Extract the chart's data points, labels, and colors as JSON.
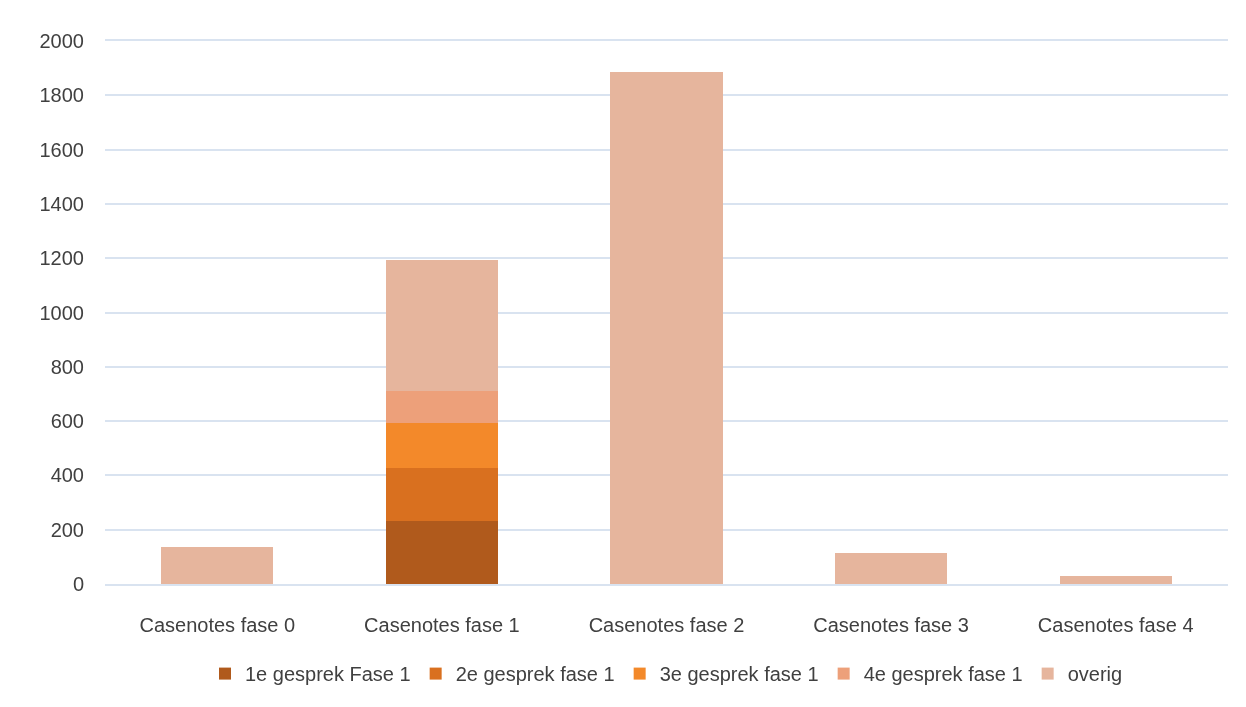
{
  "chart_data": {
    "type": "bar",
    "stacked": true,
    "categories": [
      "Casenotes fase 0",
      "Casenotes fase 1",
      "Casenotes fase 2",
      "Casenotes fase 3",
      "Casenotes fase 4"
    ],
    "series": [
      {
        "name": "1e gesprek Fase 1",
        "color": "#b05a1c",
        "values": [
          null,
          233,
          null,
          null,
          null
        ]
      },
      {
        "name": "2e gesprek fase 1",
        "color": "#d9701f",
        "values": [
          null,
          195,
          null,
          null,
          null
        ]
      },
      {
        "name": "3e gesprek fase 1",
        "color": "#f3892a",
        "values": [
          null,
          166,
          null,
          null,
          null
        ]
      },
      {
        "name": "4e gesprek fase 1",
        "color": "#eda07a",
        "values": [
          null,
          118,
          null,
          null,
          null
        ]
      },
      {
        "name": "overig",
        "color": "#e6b59d",
        "values": [
          136,
          482,
          1885,
          114,
          31
        ]
      }
    ],
    "ylim": [
      0,
      2000
    ],
    "yticks": [
      0,
      200,
      400,
      600,
      800,
      1000,
      1200,
      1400,
      1600,
      1800,
      2000
    ],
    "grid": "y",
    "legend": "bottom"
  }
}
